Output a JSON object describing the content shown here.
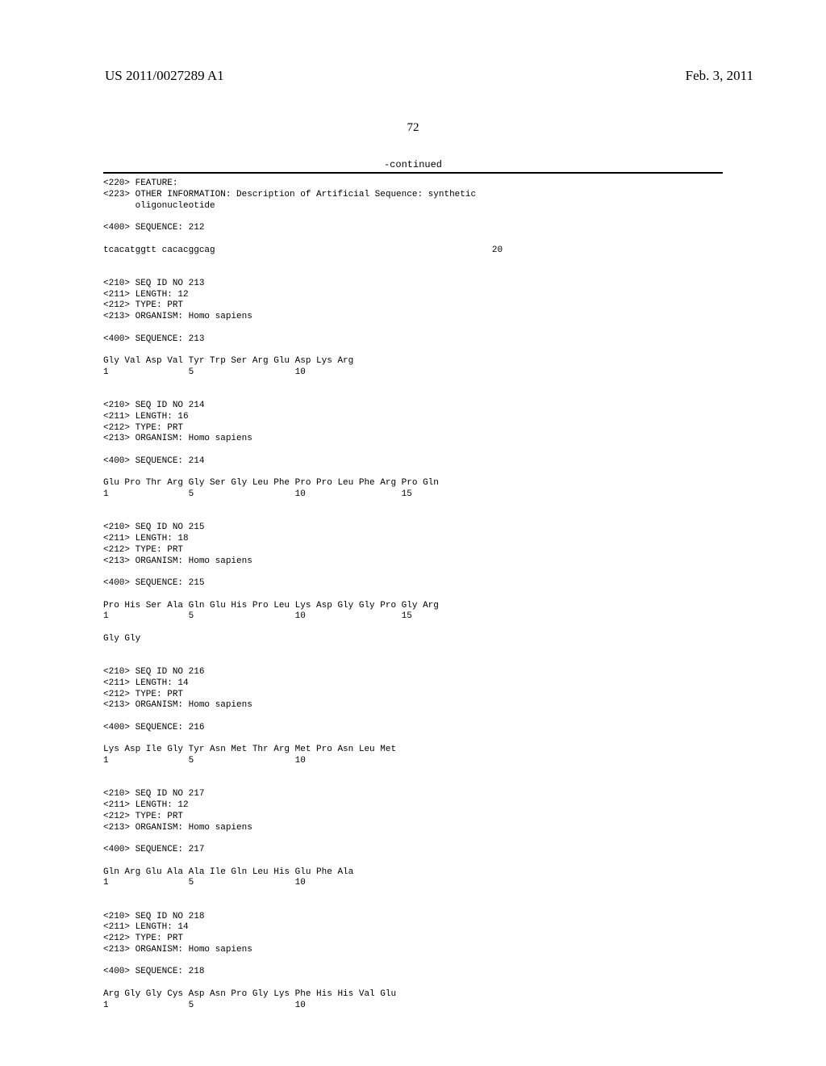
{
  "header": {
    "doc_id": "US 2011/0027289 A1",
    "date": "Feb. 3, 2011",
    "page_num": "72",
    "continued": "-continued"
  },
  "sequences": {
    "entry_212": {
      "feature": "<220> FEATURE:",
      "other_info": "<223> OTHER INFORMATION: Description of Artificial Sequence: synthetic",
      "oligonucleotide": "      oligonucleotide",
      "sequence_label": "<400> SEQUENCE: 212",
      "sequence_line": "tcacatggtt cacacggcag                                                    20"
    },
    "entry_213": {
      "seq_id": "<210> SEQ ID NO 213",
      "length": "<211> LENGTH: 12",
      "type": "<212> TYPE: PRT",
      "organism": "<213> ORGANISM: Homo sapiens",
      "sequence_label": "<400> SEQUENCE: 213",
      "seq_line": "Gly Val Asp Val Tyr Trp Ser Arg Glu Asp Lys Arg",
      "pos_line": "1               5                   10"
    },
    "entry_214": {
      "seq_id": "<210> SEQ ID NO 214",
      "length": "<211> LENGTH: 16",
      "type": "<212> TYPE: PRT",
      "organism": "<213> ORGANISM: Homo sapiens",
      "sequence_label": "<400> SEQUENCE: 214",
      "seq_line": "Glu Pro Thr Arg Gly Ser Gly Leu Phe Pro Pro Leu Phe Arg Pro Gln",
      "pos_line": "1               5                   10                  15"
    },
    "entry_215": {
      "seq_id": "<210> SEQ ID NO 215",
      "length": "<211> LENGTH: 18",
      "type": "<212> TYPE: PRT",
      "organism": "<213> ORGANISM: Homo sapiens",
      "sequence_label": "<400> SEQUENCE: 215",
      "seq_line": "Pro His Ser Ala Gln Glu His Pro Leu Lys Asp Gly Gly Pro Gly Arg",
      "pos_line": "1               5                   10                  15",
      "seq_line2": "Gly Gly"
    },
    "entry_216": {
      "seq_id": "<210> SEQ ID NO 216",
      "length": "<211> LENGTH: 14",
      "type": "<212> TYPE: PRT",
      "organism": "<213> ORGANISM: Homo sapiens",
      "sequence_label": "<400> SEQUENCE: 216",
      "seq_line": "Lys Asp Ile Gly Tyr Asn Met Thr Arg Met Pro Asn Leu Met",
      "pos_line": "1               5                   10"
    },
    "entry_217": {
      "seq_id": "<210> SEQ ID NO 217",
      "length": "<211> LENGTH: 12",
      "type": "<212> TYPE: PRT",
      "organism": "<213> ORGANISM: Homo sapiens",
      "sequence_label": "<400> SEQUENCE: 217",
      "seq_line": "Gln Arg Glu Ala Ala Ile Gln Leu His Glu Phe Ala",
      "pos_line": "1               5                   10"
    },
    "entry_218": {
      "seq_id": "<210> SEQ ID NO 218",
      "length": "<211> LENGTH: 14",
      "type": "<212> TYPE: PRT",
      "organism": "<213> ORGANISM: Homo sapiens",
      "sequence_label": "<400> SEQUENCE: 218",
      "seq_line": "Arg Gly Gly Cys Asp Asn Pro Gly Lys Phe His His Val Glu",
      "pos_line": "1               5                   10"
    }
  },
  "colors": {
    "text": "#000000",
    "background": "#ffffff"
  },
  "typography": {
    "header_font": "Times New Roman",
    "content_font": "Courier New",
    "header_size": 17,
    "content_size": 11
  }
}
